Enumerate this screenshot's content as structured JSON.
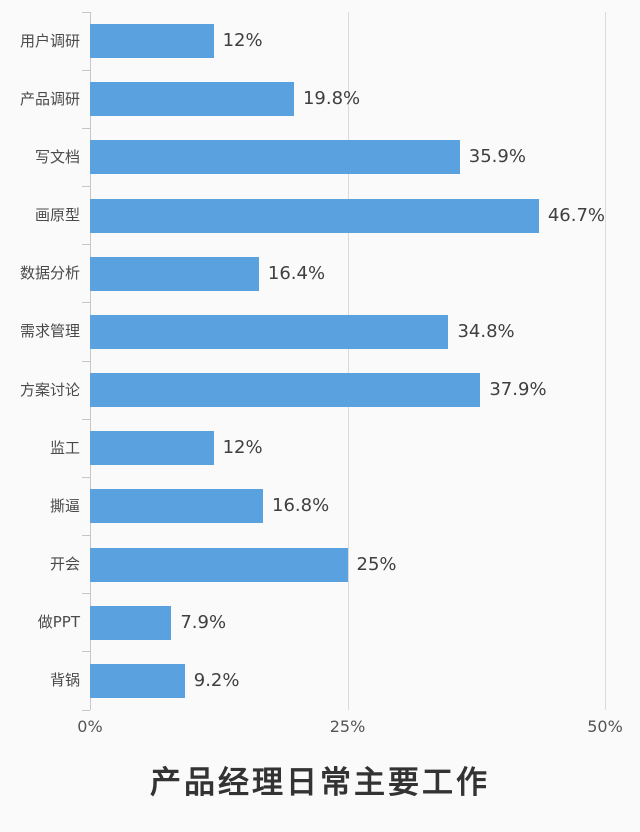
{
  "chart_data": {
    "type": "bar",
    "orientation": "horizontal",
    "title": "产品经理日常主要工作",
    "categories": [
      "用户调研",
      "产品调研",
      "写文档",
      "画原型",
      "数据分析",
      "需求管理",
      "方案讨论",
      "监工",
      "撕逼",
      "开会",
      "做PPT",
      "背锅"
    ],
    "values": [
      12,
      19.8,
      35.9,
      46.7,
      16.4,
      34.8,
      37.9,
      12,
      16.8,
      25,
      7.9,
      9.2
    ],
    "value_labels": [
      "12%",
      "19.8%",
      "35.9%",
      "46.7%",
      "16.4%",
      "34.8%",
      "37.9%",
      "12%",
      "16.8%",
      "25%",
      "7.9%",
      "9.2%"
    ],
    "x_ticks": [
      {
        "label": "0%",
        "value": 0
      },
      {
        "label": "25%",
        "value": 25
      },
      {
        "label": "50%",
        "value": 50
      }
    ],
    "xlim": [
      0,
      50
    ],
    "grid": true,
    "legend": "none",
    "colors": {
      "bar": "#59A2DF",
      "axis": "#c8c6c6",
      "gridline": "#dbd9d9",
      "category_text": "#4a4a4a",
      "value_text": "#3f3f3f",
      "tick_text": "#555555",
      "title_text": "#333333",
      "background": "#fbfafa"
    }
  }
}
